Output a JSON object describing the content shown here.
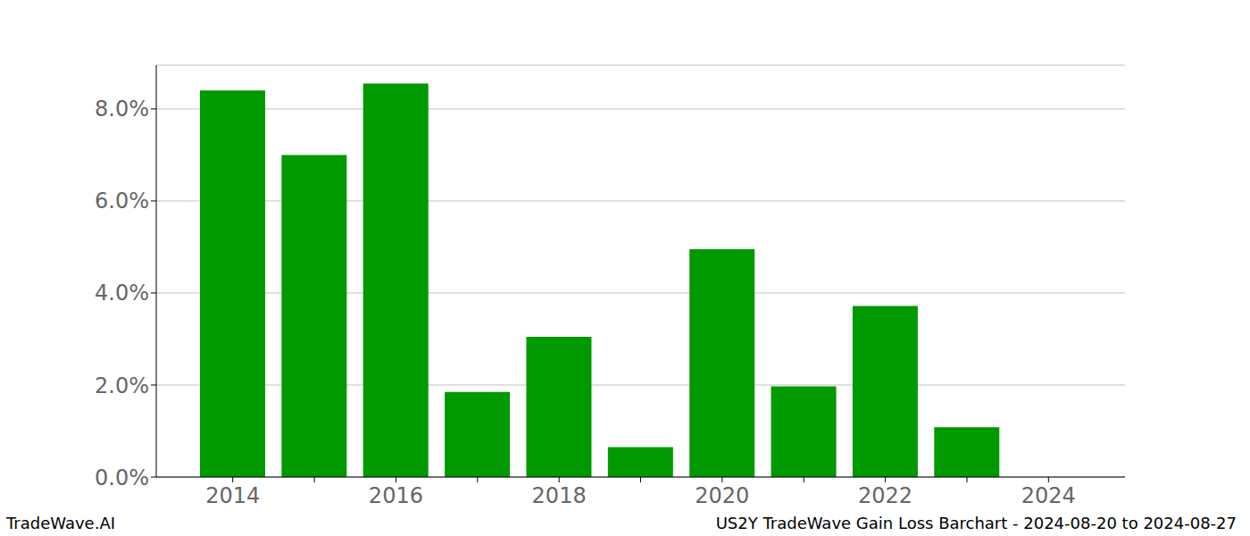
{
  "chart_data": {
    "type": "bar",
    "categories": [
      "2014",
      null,
      "2016",
      null,
      "2018",
      null,
      "2020",
      null,
      "2022",
      null,
      "2024"
    ],
    "values": [
      8.4,
      7.0,
      8.55,
      1.85,
      3.05,
      0.65,
      4.95,
      1.97,
      3.72,
      1.08,
      null
    ],
    "color": "#009900",
    "ylim": [
      0,
      8.95
    ],
    "yticks": [
      {
        "value": 0,
        "label": "0.0%"
      },
      {
        "value": 2,
        "label": "2.0%"
      },
      {
        "value": 4,
        "label": "4.0%"
      },
      {
        "value": 6,
        "label": "6.0%"
      },
      {
        "value": 8,
        "label": "8.0%"
      }
    ],
    "grid": true,
    "annotations": [
      "TradeWave.AI",
      "US2Y TradeWave Gain Loss Barchart - 2024-08-20 to 2024-08-27"
    ]
  }
}
